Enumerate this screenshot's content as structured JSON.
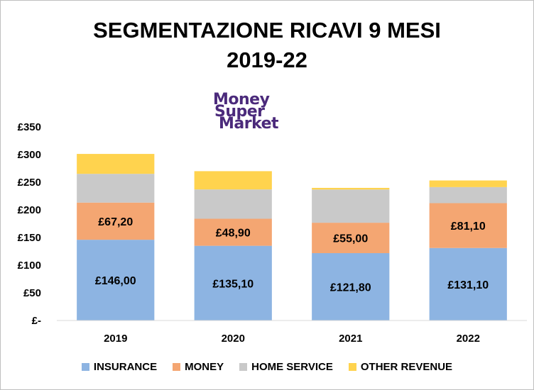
{
  "chart_data": {
    "type": "bar",
    "stacked": true,
    "title_line1": "SEGMENTAZIONE RICAVI 9 MESI",
    "title_line2": "2019-22",
    "logo_text": [
      "Money",
      "Super",
      "Market"
    ],
    "categories": [
      "2019",
      "2020",
      "2021",
      "2022"
    ],
    "ylim": [
      0,
      350
    ],
    "yticks": [
      0,
      50,
      100,
      150,
      200,
      250,
      300,
      350
    ],
    "ytick_labels": [
      "£-",
      "£50",
      "£100",
      "£150",
      "£200",
      "£250",
      "£300",
      "£350"
    ],
    "grid": false,
    "legend_position": "bottom",
    "series": [
      {
        "name": "INSURANCE",
        "color": "#8db4e2",
        "values": [
          146.0,
          135.1,
          121.8,
          131.1
        ],
        "labels": [
          "£146,00",
          "£135,10",
          "£121,80",
          "£131,10"
        ]
      },
      {
        "name": "MONEY",
        "color": "#f4a672",
        "values": [
          67.2,
          48.9,
          55.0,
          81.1
        ],
        "labels": [
          "£67,20",
          "£48,90",
          "£55,00",
          "£81,10"
        ]
      },
      {
        "name": "HOME SERVICE",
        "color": "#c9c9c9",
        "values": [
          52,
          53,
          60,
          29
        ],
        "labels": []
      },
      {
        "name": "OTHER REVENUE",
        "color": "#ffd34e",
        "values": [
          36,
          33,
          3,
          12
        ],
        "labels": []
      }
    ]
  }
}
